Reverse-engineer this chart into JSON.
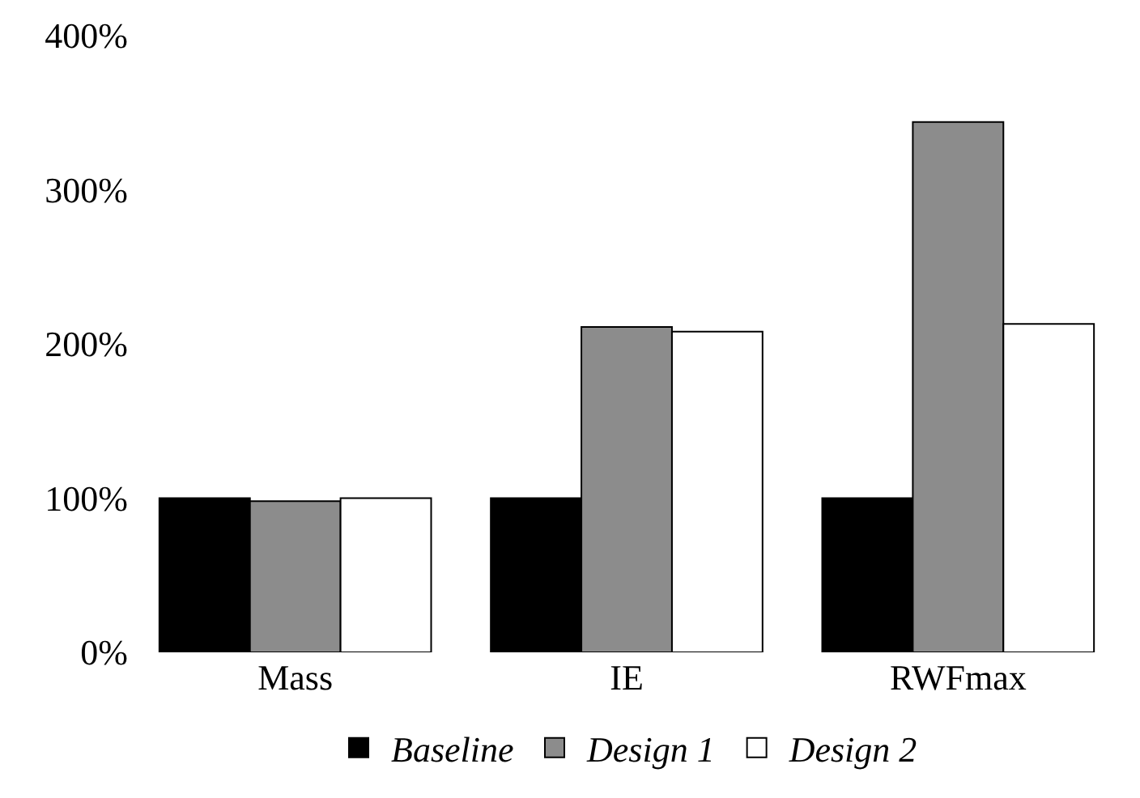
{
  "chart_data": {
    "type": "bar",
    "categories": [
      "Mass",
      "IE",
      "RWFmax"
    ],
    "series": [
      {
        "name": "Baseline",
        "color": "#000000",
        "values": [
          100,
          100,
          100
        ]
      },
      {
        "name": "Design 1",
        "color": "#8c8c8c",
        "values": [
          98,
          211,
          344
        ]
      },
      {
        "name": "Design 2",
        "color": "#ffffff",
        "values": [
          100,
          208,
          213
        ]
      }
    ],
    "ylim": [
      0,
      400
    ],
    "yticks": [
      {
        "value": 0,
        "label": "0%"
      },
      {
        "value": 100,
        "label": "100%"
      },
      {
        "value": 200,
        "label": "200%"
      },
      {
        "value": 300,
        "label": "300%"
      },
      {
        "value": 400,
        "label": "400%"
      }
    ],
    "legend": "bottom"
  }
}
